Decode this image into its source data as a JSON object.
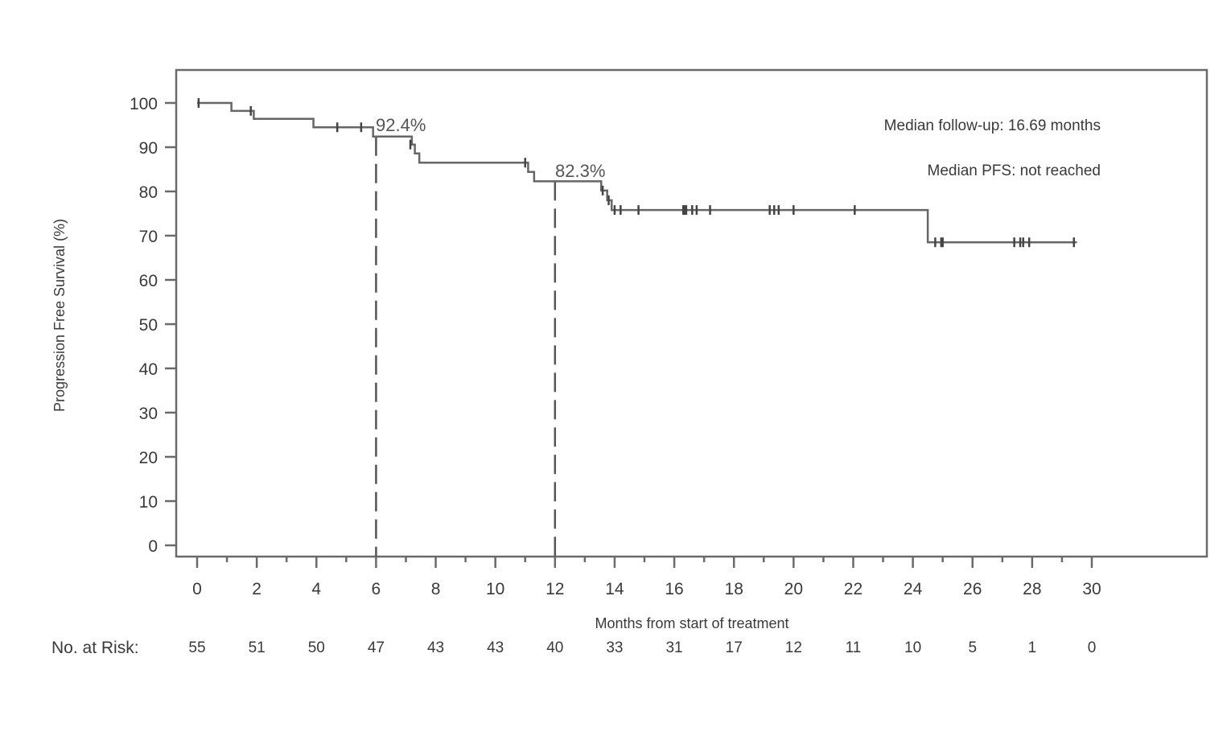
{
  "chart_data": {
    "type": "line",
    "subtype": "kaplan-meier-step",
    "title": "",
    "xlabel": "Months from start of treatment",
    "ylabel": "Progression Free Survival (%)",
    "xlim": [
      0,
      30
    ],
    "ylim": [
      0,
      100
    ],
    "x_ticks": [
      0,
      2,
      4,
      6,
      8,
      10,
      12,
      14,
      16,
      18,
      20,
      22,
      24,
      26,
      28,
      30
    ],
    "y_ticks": [
      0,
      10,
      20,
      30,
      40,
      50,
      60,
      70,
      80,
      90,
      100
    ],
    "grid": false,
    "legend": null,
    "series": [
      {
        "name": "PFS",
        "color": "#555555",
        "steps": [
          [
            0,
            100
          ],
          [
            1.15,
            98.2
          ],
          [
            1.9,
            96.4
          ],
          [
            3.9,
            94.5
          ],
          [
            5.9,
            92.4
          ],
          [
            7.2,
            90.6
          ],
          [
            7.3,
            88.6
          ],
          [
            7.45,
            86.5
          ],
          [
            11.1,
            84.4
          ],
          [
            11.3,
            82.3
          ],
          [
            13.55,
            80.2
          ],
          [
            13.75,
            78.0
          ],
          [
            13.9,
            75.8
          ],
          [
            24.5,
            68.5
          ],
          [
            29.5,
            68.5
          ]
        ],
        "censored": [
          [
            0.05,
            100
          ],
          [
            1.8,
            98.2
          ],
          [
            4.7,
            94.5
          ],
          [
            5.5,
            94.5
          ],
          [
            7.15,
            90.6
          ],
          [
            11.0,
            86.5
          ],
          [
            13.6,
            80.2
          ],
          [
            13.8,
            78.0
          ],
          [
            14.0,
            75.8
          ],
          [
            14.2,
            75.8
          ],
          [
            14.8,
            75.8
          ],
          [
            16.3,
            75.8
          ],
          [
            16.35,
            75.8
          ],
          [
            16.4,
            75.8
          ],
          [
            16.6,
            75.8
          ],
          [
            16.75,
            75.8
          ],
          [
            17.2,
            75.8
          ],
          [
            19.2,
            75.8
          ],
          [
            19.35,
            75.8
          ],
          [
            19.5,
            75.8
          ],
          [
            20.0,
            75.8
          ],
          [
            22.05,
            75.8
          ],
          [
            24.75,
            68.5
          ],
          [
            24.95,
            68.5
          ],
          [
            25.0,
            68.5
          ],
          [
            27.4,
            68.5
          ],
          [
            27.6,
            68.5
          ],
          [
            27.7,
            68.5
          ],
          [
            27.9,
            68.5
          ],
          [
            29.4,
            68.5
          ]
        ]
      }
    ],
    "reference_lines": [
      {
        "x": 6,
        "y": 92.4,
        "label": "92.4%",
        "style": "dashed"
      },
      {
        "x": 12,
        "y": 82.3,
        "label": "82.3%",
        "style": "dashed"
      }
    ],
    "annotations": [
      "Median follow-up: 16.69 months",
      "Median PFS: not reached"
    ],
    "risk_table": {
      "label": "No. at Risk:",
      "times": [
        0,
        2,
        4,
        6,
        8,
        10,
        12,
        14,
        16,
        18,
        20,
        22,
        24,
        26,
        28,
        30
      ],
      "values": [
        55,
        51,
        50,
        47,
        43,
        43,
        40,
        33,
        31,
        17,
        12,
        11,
        10,
        5,
        1,
        0
      ]
    }
  },
  "labels": {
    "ylabel": "Progression Free Survival (%)",
    "xlabel": "Months from start of treatment",
    "annotation_followup": "Median follow-up: 16.69 months",
    "annotation_pfs": "Median PFS: not reached",
    "pct_6": "92.4%",
    "pct_12": "82.3%",
    "risk_label": "No. at Risk:"
  }
}
